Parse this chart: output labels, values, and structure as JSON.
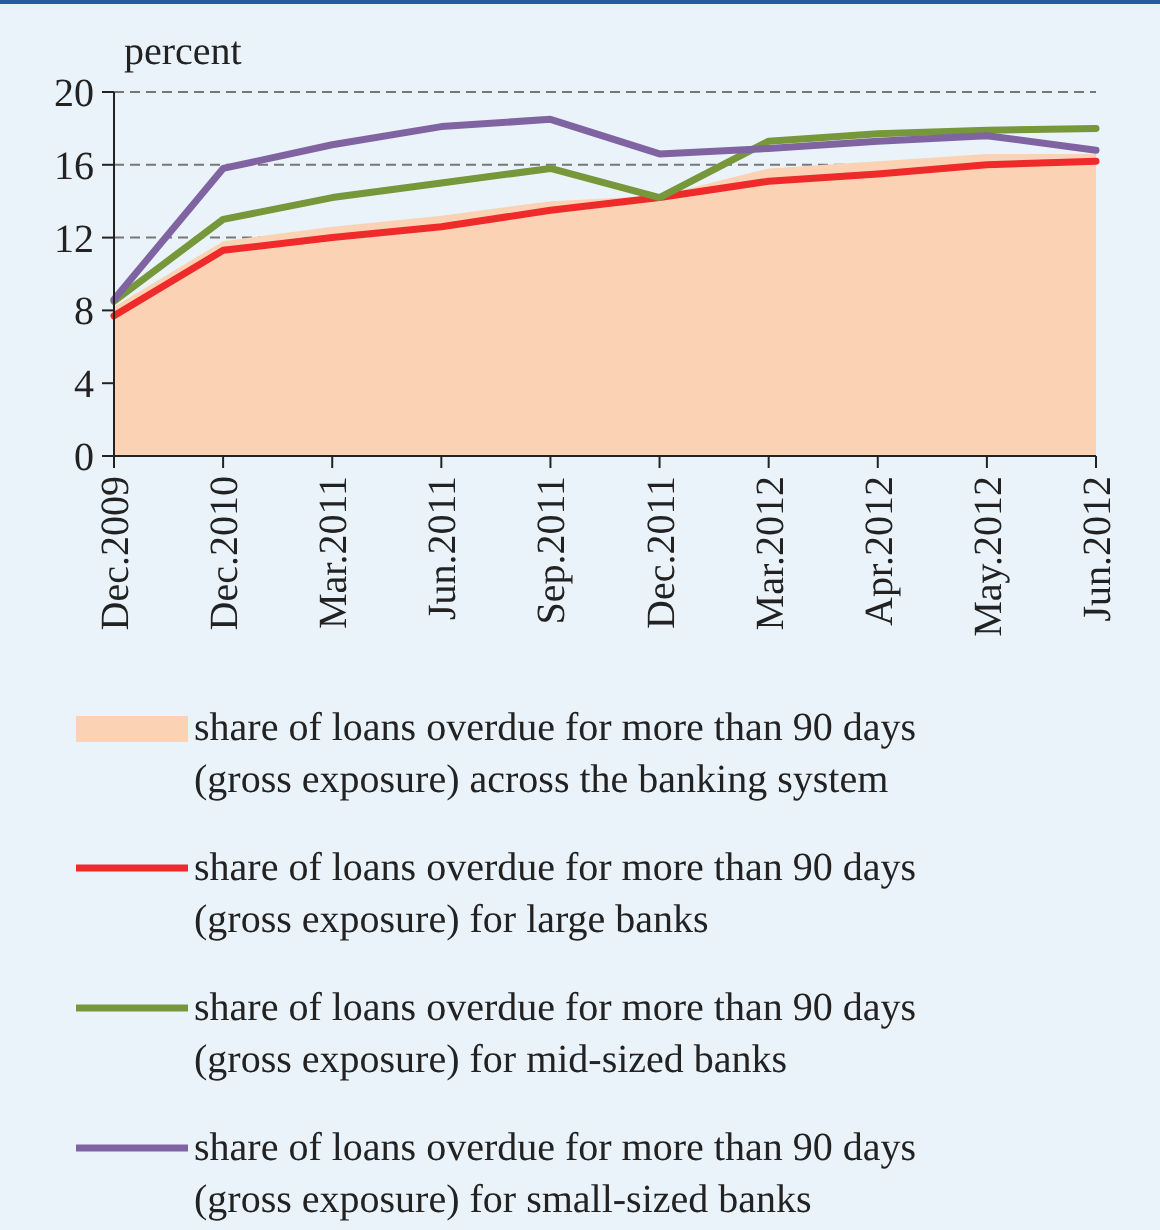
{
  "chart_data": {
    "type": "line",
    "ylabel": "percent",
    "categories": [
      "Dec.2009",
      "Dec.2010",
      "Mar.2011",
      "Jun.2011",
      "Sep.2011",
      "Dec.2011",
      "Mar.2012",
      "Apr.2012",
      "May.2012",
      "Jun.2012"
    ],
    "ylim": [
      0,
      20
    ],
    "yticks": [
      0,
      4,
      8,
      12,
      16,
      20
    ],
    "grid": "y",
    "legend": "bottom",
    "line_style": "solid",
    "series": [
      {
        "name": "share of loans overdue for more than 90 days (gross exposure) across the banking system",
        "type": "area",
        "color": "#fbd3b4",
        "values": [
          8.2,
          11.8,
          12.6,
          13.2,
          14.0,
          14.3,
          15.8,
          16.2,
          16.6,
          16.6
        ]
      },
      {
        "name": "share of loans overdue for more than 90 days (gross exposure) for large banks",
        "color": "#ee2a2a",
        "values": [
          7.7,
          11.3,
          12.0,
          12.6,
          13.5,
          14.2,
          15.1,
          15.5,
          16.0,
          16.2
        ]
      },
      {
        "name": "share of loans overdue for more than 90 days (gross exposure) for mid-sized banks",
        "color": "#76973a",
        "values": [
          8.5,
          13.0,
          14.2,
          15.0,
          15.8,
          14.2,
          17.3,
          17.7,
          17.9,
          18.0
        ]
      },
      {
        "name": "share of loans overdue for more than 90 days (gross exposure) for small-sized banks",
        "color": "#8064a2",
        "values": [
          8.6,
          15.8,
          17.1,
          18.1,
          18.5,
          16.6,
          16.9,
          17.3,
          17.6,
          16.8
        ]
      }
    ]
  }
}
